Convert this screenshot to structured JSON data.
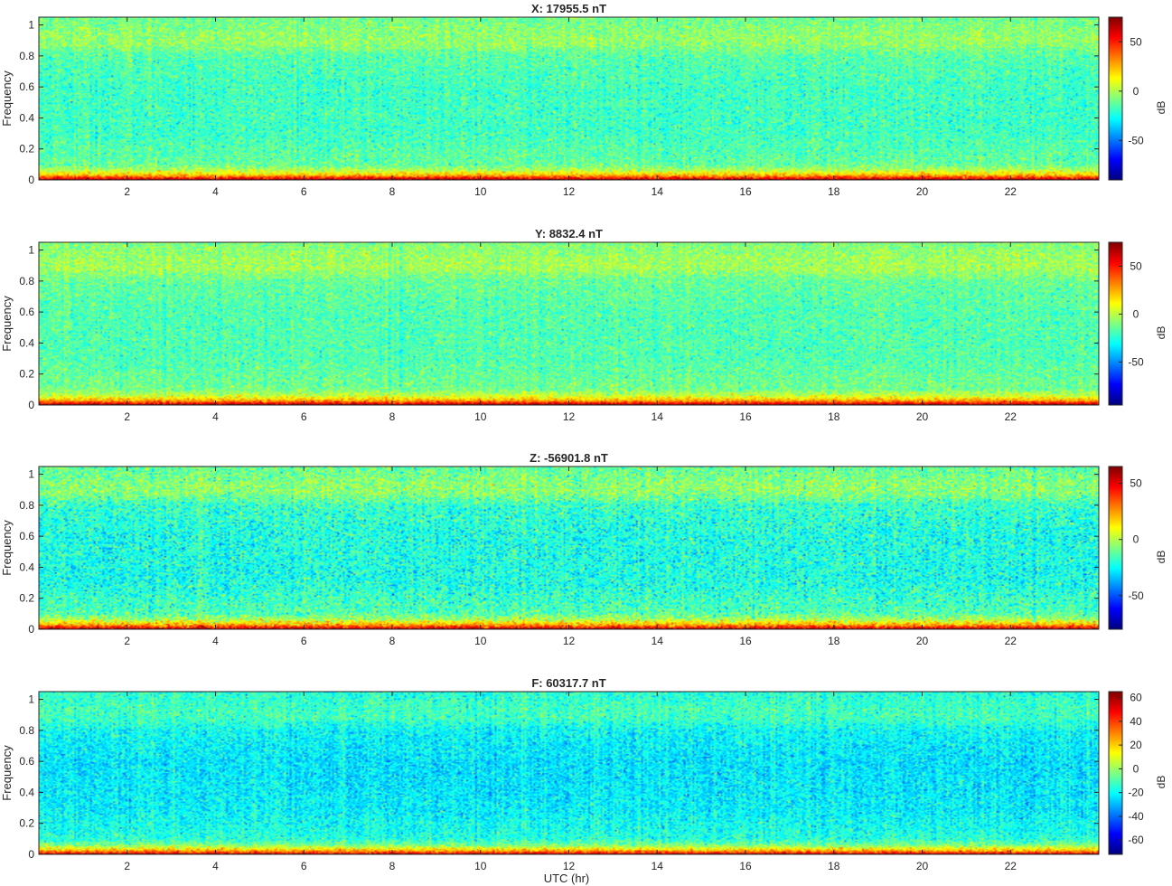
{
  "figure": {
    "xlabel": "UTC (hr)"
  },
  "chart_data": [
    {
      "type": "heatmap",
      "title": "X: 17955.5 nT",
      "xlabel": "",
      "ylabel": "Frequency",
      "xlim": [
        0,
        24
      ],
      "ylim": [
        0,
        1.05
      ],
      "xticks": [
        2,
        4,
        6,
        8,
        10,
        12,
        14,
        16,
        18,
        20,
        22
      ],
      "yticks": [
        0,
        0.2,
        0.4,
        0.6,
        0.8,
        1
      ],
      "colorbar": {
        "label": "dB",
        "clim": [
          -90,
          75
        ],
        "ticks": [
          50,
          0,
          -50
        ]
      },
      "colormap": "jet",
      "profile": {
        "freq": [
          0,
          0.01,
          0.03,
          0.06,
          0.1,
          0.3,
          0.6,
          0.8,
          0.88,
          0.94,
          1.05
        ],
        "db": [
          75,
          55,
          25,
          2,
          -12,
          -18,
          -18,
          -14,
          -4,
          -5,
          -10
        ]
      },
      "noise_db": 8
    },
    {
      "type": "heatmap",
      "title": "Y: 8832.4 nT",
      "xlabel": "",
      "ylabel": "Frequency",
      "xlim": [
        0,
        24
      ],
      "ylim": [
        0,
        1.05
      ],
      "xticks": [
        2,
        4,
        6,
        8,
        10,
        12,
        14,
        16,
        18,
        20,
        22
      ],
      "yticks": [
        0,
        0.2,
        0.4,
        0.6,
        0.8,
        1
      ],
      "colorbar": {
        "label": "dB",
        "clim": [
          -95,
          75
        ],
        "ticks": [
          50,
          0,
          -50
        ]
      },
      "colormap": "jet",
      "profile": {
        "freq": [
          0,
          0.01,
          0.03,
          0.06,
          0.1,
          0.3,
          0.6,
          0.8,
          0.88,
          0.94,
          1.05
        ],
        "db": [
          75,
          55,
          25,
          2,
          -12,
          -18,
          -18,
          -14,
          -4,
          -5,
          -10
        ]
      },
      "noise_db": 8
    },
    {
      "type": "heatmap",
      "title": "Z: -56901.8 nT",
      "xlabel": "",
      "ylabel": "Frequency",
      "xlim": [
        0,
        24
      ],
      "ylim": [
        0,
        1.05
      ],
      "xticks": [
        2,
        4,
        6,
        8,
        10,
        12,
        14,
        16,
        18,
        20,
        22
      ],
      "yticks": [
        0,
        0.2,
        0.4,
        0.6,
        0.8,
        1
      ],
      "colorbar": {
        "label": "dB",
        "clim": [
          -80,
          65
        ],
        "ticks": [
          50,
          0,
          -50
        ]
      },
      "colormap": "jet",
      "profile": {
        "freq": [
          0,
          0.01,
          0.03,
          0.06,
          0.1,
          0.3,
          0.6,
          0.8,
          0.88,
          0.94,
          1.05
        ],
        "db": [
          65,
          45,
          22,
          0,
          -14,
          -22,
          -22,
          -18,
          -6,
          -6,
          -12
        ]
      },
      "noise_db": 9
    },
    {
      "type": "heatmap",
      "title": "F: 60317.7 nT",
      "xlabel": "UTC (hr)",
      "ylabel": "Frequency",
      "xlim": [
        0,
        24
      ],
      "ylim": [
        0,
        1.05
      ],
      "xticks": [
        2,
        4,
        6,
        8,
        10,
        12,
        14,
        16,
        18,
        20,
        22
      ],
      "yticks": [
        0,
        0.2,
        0.4,
        0.6,
        0.8,
        1
      ],
      "colorbar": {
        "label": "dB",
        "clim": [
          -72,
          65
        ],
        "ticks": [
          60,
          40,
          20,
          0,
          -20,
          -40,
          -60
        ]
      },
      "colormap": "jet",
      "profile": {
        "freq": [
          0,
          0.01,
          0.03,
          0.06,
          0.1,
          0.3,
          0.6,
          0.8,
          0.88,
          0.94,
          1.05
        ],
        "db": [
          62,
          42,
          18,
          -4,
          -16,
          -22,
          -24,
          -20,
          -12,
          -12,
          -16
        ]
      },
      "noise_db": 7
    }
  ]
}
